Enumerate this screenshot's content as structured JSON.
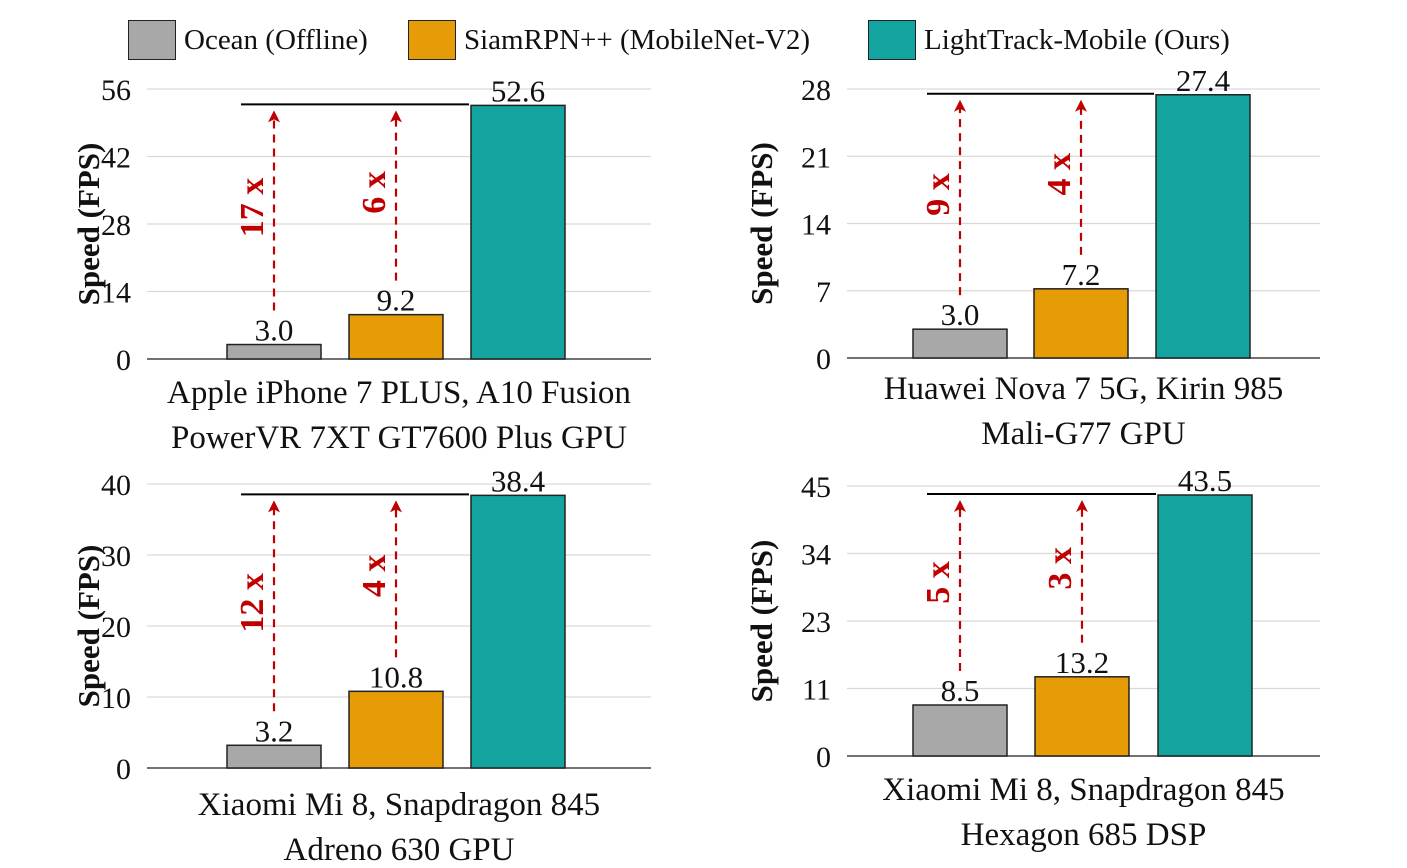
{
  "legend": [
    {
      "label": "Ocean (Offline)",
      "color": "#a8a8a8"
    },
    {
      "label": "SiamRPN++ (MobileNet-V2)",
      "color": "#e59c07"
    },
    {
      "label": "LightTrack-Mobile (Ours)",
      "color": "#14a4a0"
    }
  ],
  "colors": {
    "ocean": "#a8a8a8",
    "siamrpn": "#e59c07",
    "lighttrack": "#14a4a0",
    "arrow": "#c00000"
  },
  "chart_data": [
    {
      "type": "bar",
      "categories": [
        "Ocean (Offline)",
        "SiamRPN++ (MobileNet-V2)",
        "LightTrack-Mobile (Ours)"
      ],
      "values": [
        3.0,
        9.2,
        52.6
      ],
      "value_labels": [
        "3.0",
        "9.2",
        "52.6"
      ],
      "ylabel": "Speed (FPS)",
      "yticks": [
        "0",
        "14",
        "28",
        "42",
        "56"
      ],
      "ylim": [
        0,
        56
      ],
      "xlabel": [
        "Apple iPhone 7 PLUS, A10 Fusion",
        "PowerVR 7XT GT7600 Plus GPU"
      ],
      "speedups": [
        "17 x",
        "6 x"
      ],
      "grid": true
    },
    {
      "type": "bar",
      "categories": [
        "Ocean (Offline)",
        "SiamRPN++ (MobileNet-V2)",
        "LightTrack-Mobile (Ours)"
      ],
      "values": [
        3.0,
        7.2,
        27.4
      ],
      "value_labels": [
        "3.0",
        "7.2",
        "27.4"
      ],
      "ylabel": "Speed (FPS)",
      "yticks": [
        "0",
        "7",
        "14",
        "21",
        "28"
      ],
      "ylim": [
        0,
        28
      ],
      "xlabel": [
        "Huawei Nova 7 5G, Kirin 985",
        "Mali-G77 GPU"
      ],
      "speedups": [
        "9 x",
        "4 x"
      ],
      "grid": true
    },
    {
      "type": "bar",
      "categories": [
        "Ocean (Offline)",
        "SiamRPN++ (MobileNet-V2)",
        "LightTrack-Mobile (Ours)"
      ],
      "values": [
        3.2,
        10.8,
        38.4
      ],
      "value_labels": [
        "3.2",
        "10.8",
        "38.4"
      ],
      "ylabel": "Speed (FPS)",
      "yticks": [
        "0",
        "10",
        "20",
        "30",
        "40"
      ],
      "ylim": [
        0,
        40
      ],
      "xlabel": [
        "Xiaomi Mi 8, Snapdragon 845",
        "Adreno 630 GPU"
      ],
      "speedups": [
        "12 x",
        "4 x"
      ],
      "grid": true
    },
    {
      "type": "bar",
      "categories": [
        "Ocean (Offline)",
        "SiamRPN++ (MobileNet-V2)",
        "LightTrack-Mobile (Ours)"
      ],
      "values": [
        8.5,
        13.2,
        43.5
      ],
      "value_labels": [
        "8.5",
        "13.2",
        "43.5"
      ],
      "ylabel": "Speed (FPS)",
      "yticks": [
        "0",
        "11",
        "23",
        "34",
        "45"
      ],
      "ylim": [
        0,
        45
      ],
      "xlabel": [
        "Xiaomi Mi 8, Snapdragon 845",
        "Hexagon 685 DSP"
      ],
      "speedups": [
        "5 x",
        "3 x"
      ],
      "grid": true
    }
  ]
}
